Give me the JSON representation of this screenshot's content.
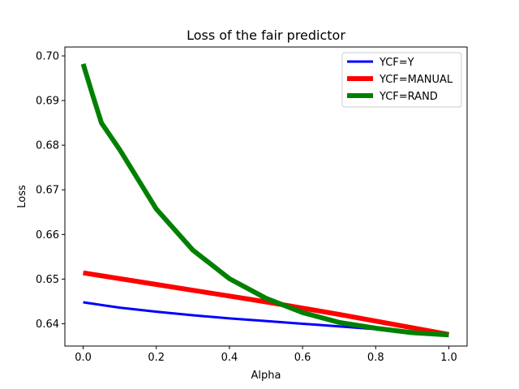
{
  "chart_data": {
    "type": "line",
    "title": "Loss of the fair predictor",
    "xlabel": "Alpha",
    "ylabel": "Loss",
    "xlim": [
      -0.05,
      1.05
    ],
    "ylim": [
      0.635,
      0.702
    ],
    "xticks": [
      0.0,
      0.2,
      0.4,
      0.6,
      0.8,
      1.0
    ],
    "xtick_labels": [
      "0.0",
      "0.2",
      "0.4",
      "0.6",
      "0.8",
      "1.0"
    ],
    "yticks": [
      0.64,
      0.65,
      0.66,
      0.67,
      0.68,
      0.69,
      0.7
    ],
    "ytick_labels": [
      "0.64",
      "0.65",
      "0.66",
      "0.67",
      "0.68",
      "0.69",
      "0.70"
    ],
    "grid": false,
    "legend_position": "top-right",
    "series": [
      {
        "name": "YCF=Y",
        "color": "#0000ff",
        "x": [
          0.0,
          0.1,
          0.2,
          0.3,
          0.4,
          0.5,
          0.6,
          0.7,
          0.8,
          0.9,
          1.0
        ],
        "y": [
          0.6448,
          0.6436,
          0.6427,
          0.6419,
          0.6412,
          0.6406,
          0.64,
          0.6394,
          0.6388,
          0.6382,
          0.6376
        ]
      },
      {
        "name": "YCF=MANUAL",
        "color": "#ff0000",
        "x": [
          0.0,
          0.1,
          0.2,
          0.3,
          0.4,
          0.5,
          0.6,
          0.7,
          0.8,
          0.9,
          1.0
        ],
        "y": [
          0.6514,
          0.6501,
          0.6488,
          0.6475,
          0.6462,
          0.6449,
          0.6435,
          0.6421,
          0.6406,
          0.6391,
          0.6376
        ]
      },
      {
        "name": "YCF=RAND",
        "color": "#008000",
        "x": [
          0.0,
          0.025,
          0.05,
          0.1,
          0.2,
          0.3,
          0.4,
          0.5,
          0.6,
          0.7,
          0.8,
          0.9,
          1.0
        ],
        "y": [
          0.6982,
          0.6915,
          0.685,
          0.679,
          0.6657,
          0.6565,
          0.6501,
          0.6457,
          0.6425,
          0.6403,
          0.639,
          0.638,
          0.6375
        ]
      }
    ]
  }
}
